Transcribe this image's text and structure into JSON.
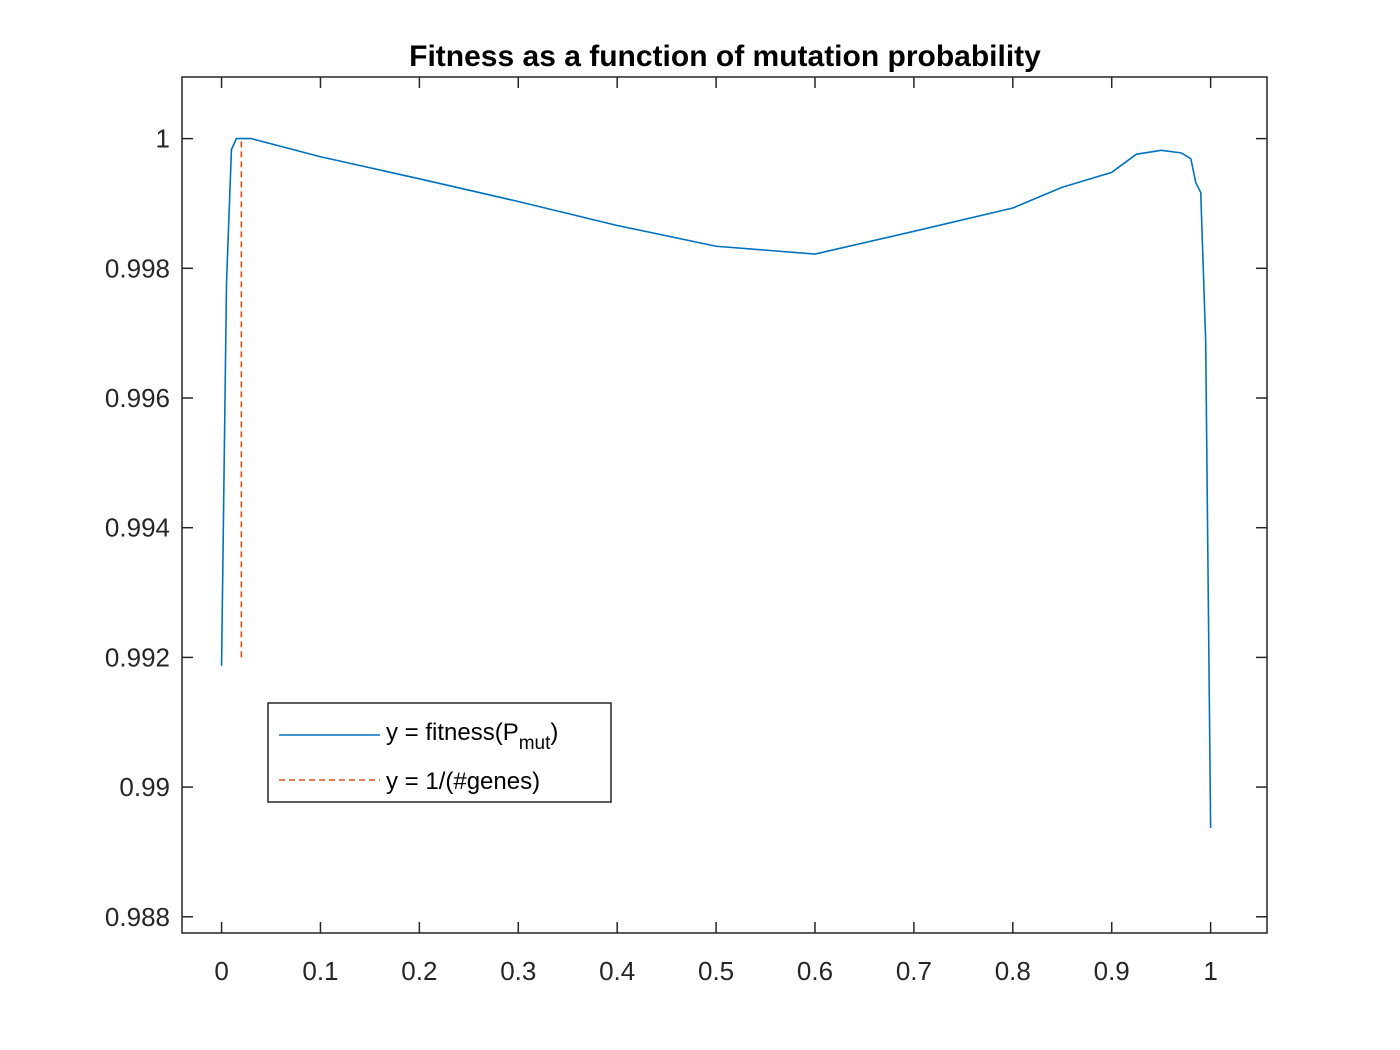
{
  "chart_data": {
    "type": "line",
    "title": "Fitness as a function of mutation probability",
    "xlabel": "",
    "ylabel": "",
    "xlim": [
      -0.04,
      1.057
    ],
    "ylim": [
      0.98775,
      1.00095
    ],
    "xticks": [
      0,
      0.1,
      0.2,
      0.3,
      0.4,
      0.5,
      0.6,
      0.7,
      0.8,
      0.9,
      1
    ],
    "xtick_labels": [
      "0",
      "0.1",
      "0.2",
      "0.3",
      "0.4",
      "0.5",
      "0.6",
      "0.7",
      "0.8",
      "0.9",
      "1"
    ],
    "yticks": [
      0.988,
      0.99,
      0.992,
      0.994,
      0.996,
      0.998,
      1
    ],
    "ytick_labels": [
      "0.988",
      "0.99",
      "0.992",
      "0.994",
      "0.996",
      "0.998",
      "1"
    ],
    "grid": false,
    "legend_position": "lower-left",
    "series": [
      {
        "name_prefix": "y = fitness(P",
        "name_sub": "mut",
        "name_suffix": ")",
        "color": "#0072BD",
        "style": "solid",
        "x": [
          0,
          0.005,
          0.01,
          0.015,
          0.02,
          0.03,
          0.1,
          0.2,
          0.3,
          0.4,
          0.5,
          0.6,
          0.7,
          0.8,
          0.85,
          0.9,
          0.925,
          0.95,
          0.97,
          0.98,
          0.985,
          0.99,
          0.995,
          1.0
        ],
        "y": [
          0.99187,
          0.99778,
          0.99983,
          1.0,
          1.0,
          1.0,
          0.99972,
          0.99938,
          0.99903,
          0.99866,
          0.99834,
          0.99822,
          0.99857,
          0.99893,
          0.99925,
          0.99948,
          0.99976,
          0.99982,
          0.99978,
          0.99969,
          0.99932,
          0.99917,
          0.99688,
          0.98937
        ]
      },
      {
        "name": "y = 1/(#genes)",
        "color": "#D95319",
        "style": "dashed",
        "x": [
          0.02,
          0.02
        ],
        "y": [
          0.992,
          1.0
        ]
      }
    ]
  }
}
